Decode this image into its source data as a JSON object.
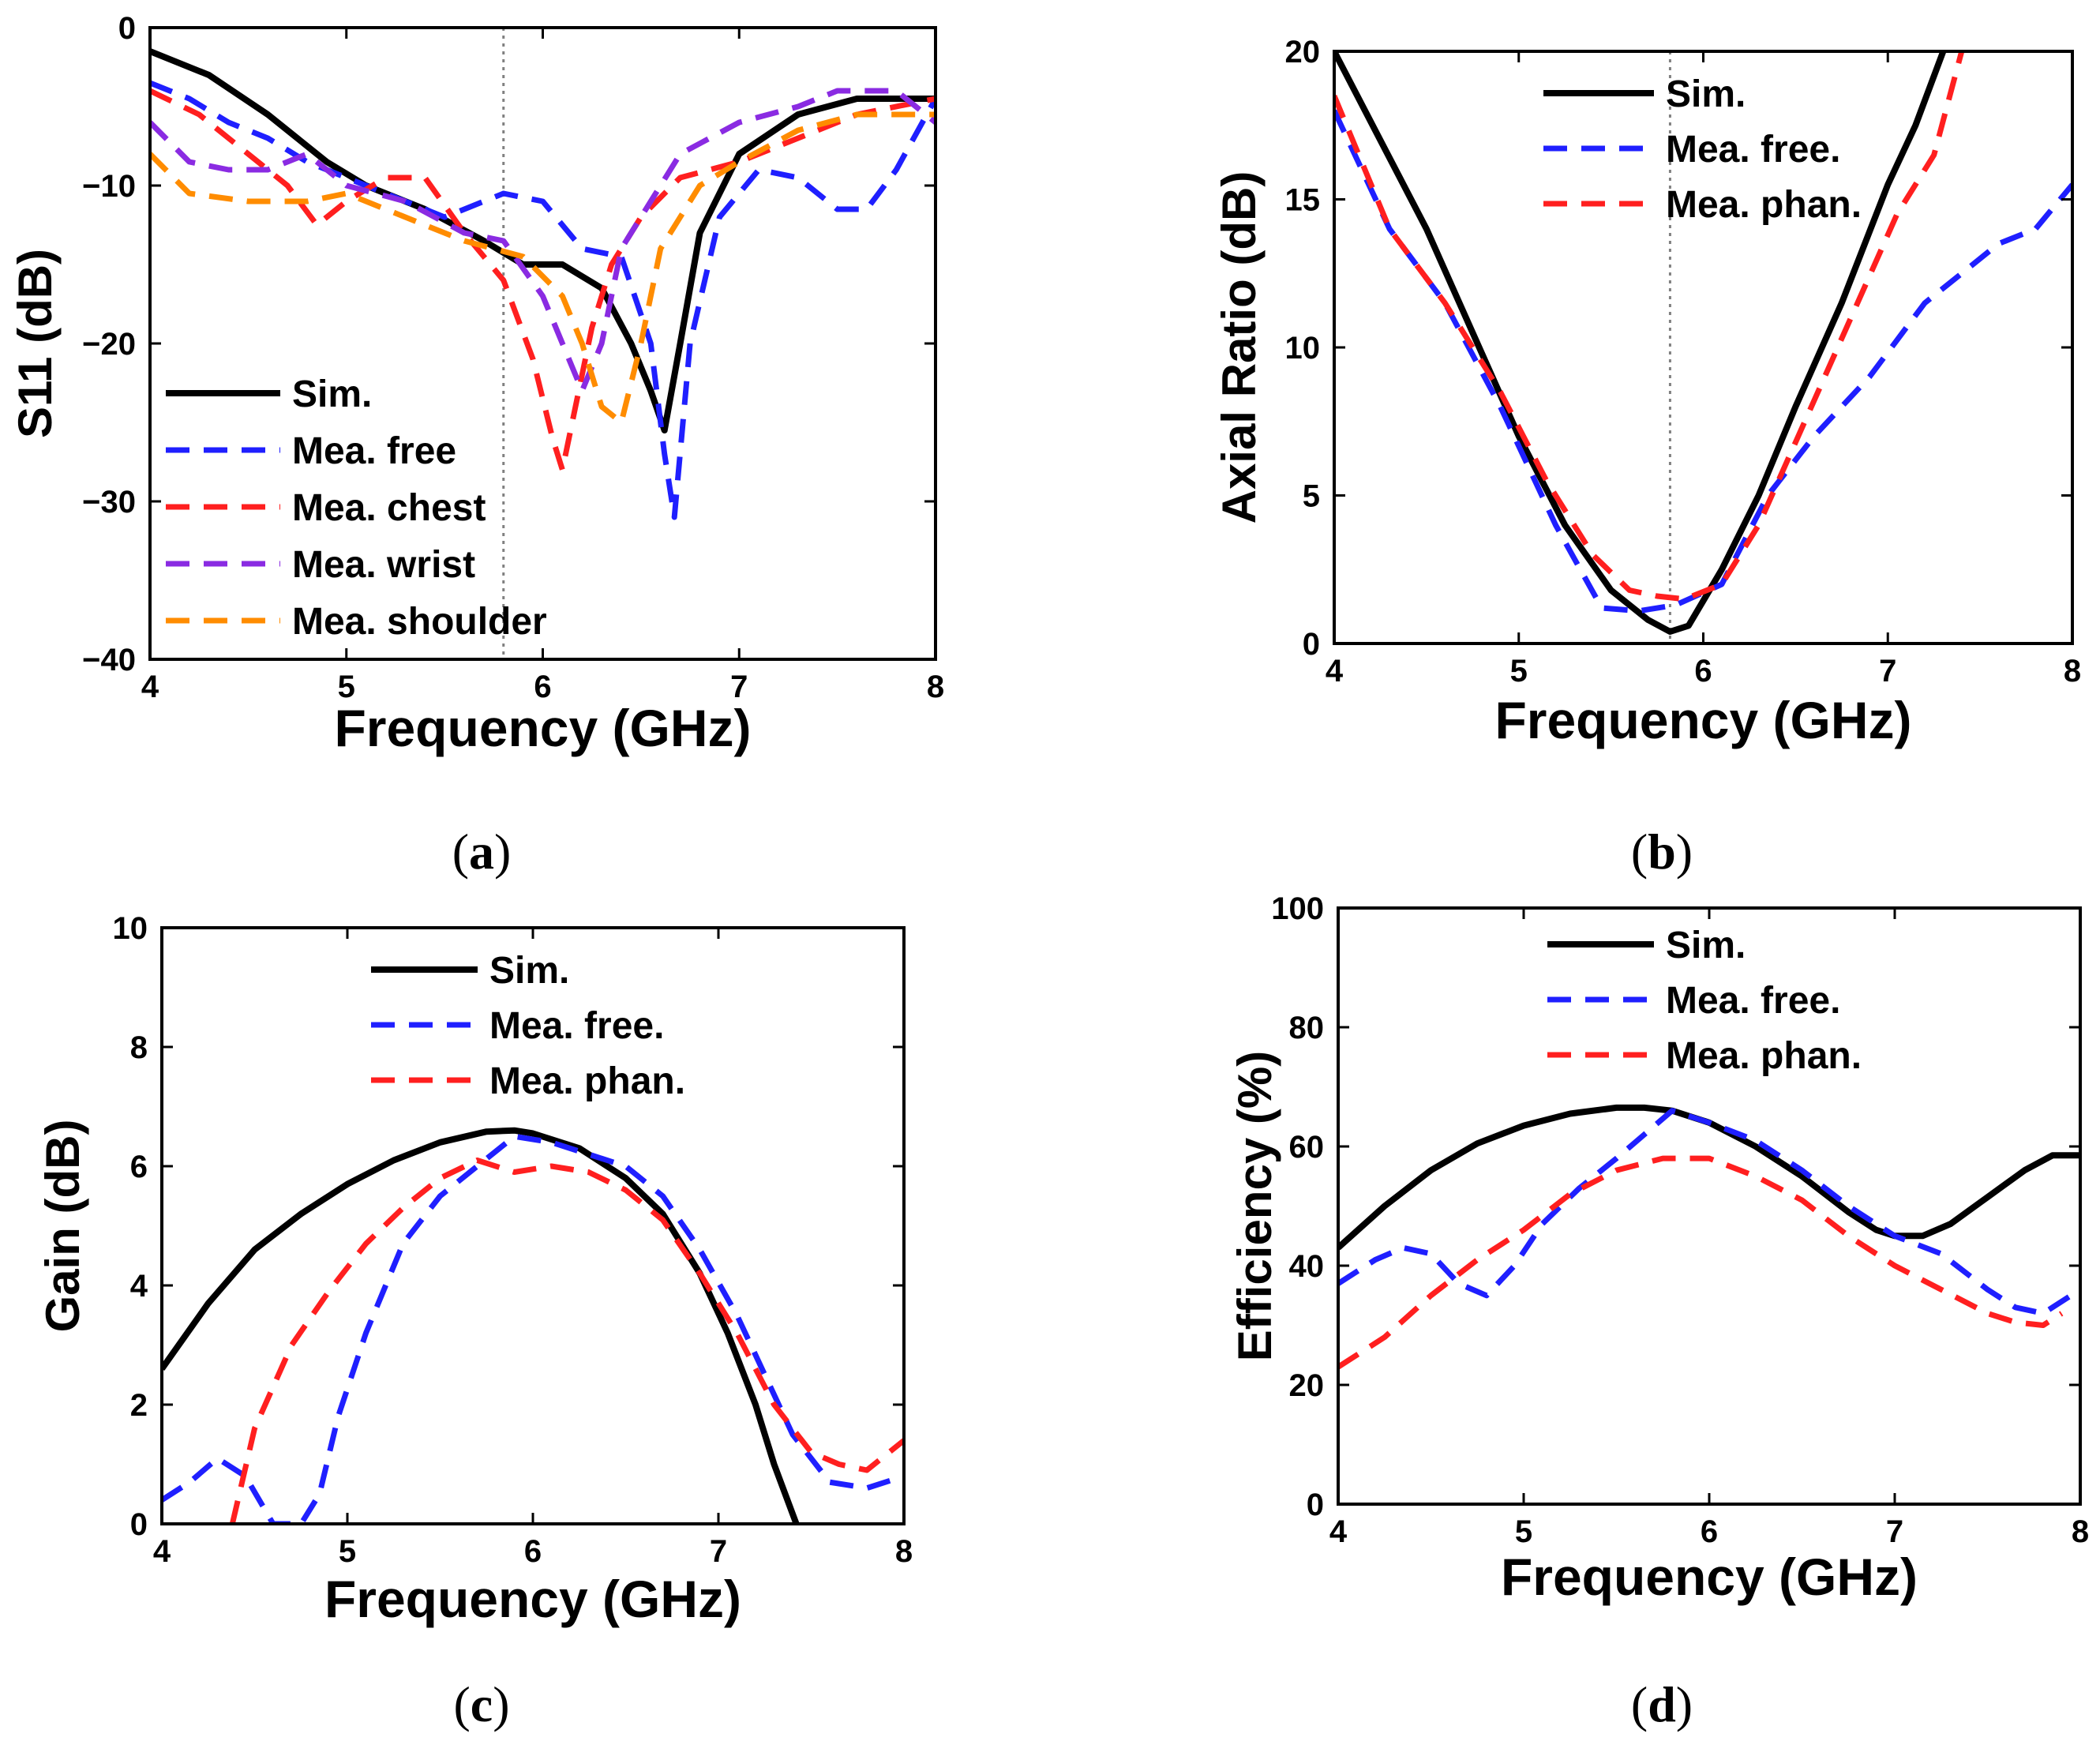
{
  "colors": {
    "sim": "#000000",
    "free": "#1f1fff",
    "chest": "#ff1f1f",
    "wrist": "#8a2be2",
    "shoulder": "#ff8c00",
    "phan": "#ff1f1f",
    "marker": "#808080"
  },
  "chart_data": [
    {
      "id": "a",
      "panel_label": "a",
      "type": "line",
      "xlabel": "Frequency (GHz)",
      "ylabel": "S11 (dB)",
      "xlim": [
        4,
        8
      ],
      "ylim": [
        -40,
        0
      ],
      "xticks": [
        4,
        5,
        6,
        7,
        8
      ],
      "yticks": [
        0,
        -10,
        -20,
        -30,
        -40
      ],
      "ytick_labels": [
        "0",
        "−10",
        "−20",
        "−30",
        "−40"
      ],
      "marker_x": 5.8,
      "legend_position": "bottom-left",
      "series": [
        {
          "name": "Sim.",
          "color_key": "sim",
          "dash": false,
          "x": [
            4,
            4.3,
            4.6,
            4.9,
            5.1,
            5.4,
            5.7,
            5.9,
            6.1,
            6.3,
            6.45,
            6.55,
            6.62,
            6.7,
            6.8,
            7.0,
            7.3,
            7.6,
            8.0
          ],
          "y": [
            -1.5,
            -3,
            -5.5,
            -8.5,
            -10,
            -11.5,
            -13.5,
            -15,
            -15,
            -16.5,
            -20,
            -23,
            -25.5,
            -20,
            -13,
            -8,
            -5.5,
            -4.5,
            -4.5
          ]
        },
        {
          "name": "Mea. free",
          "color_key": "free",
          "dash": true,
          "x": [
            4,
            4.2,
            4.4,
            4.6,
            4.8,
            5.0,
            5.3,
            5.5,
            5.8,
            6.0,
            6.2,
            6.4,
            6.55,
            6.62,
            6.67,
            6.75,
            6.9,
            7.1,
            7.3,
            7.5,
            7.65,
            7.8,
            8.0
          ],
          "y": [
            -3.5,
            -4.5,
            -6,
            -7,
            -8.5,
            -9.5,
            -11,
            -12,
            -10.5,
            -11,
            -14,
            -14.5,
            -20,
            -27,
            -31,
            -20,
            -12,
            -9,
            -9.5,
            -11.5,
            -11.5,
            -9,
            -4.5
          ]
        },
        {
          "name": "Mea. chest",
          "color_key": "chest",
          "dash": true,
          "x": [
            4,
            4.25,
            4.5,
            4.7,
            4.85,
            5.0,
            5.2,
            5.4,
            5.6,
            5.8,
            5.95,
            6.05,
            6.1,
            6.15,
            6.25,
            6.35,
            6.5,
            6.7,
            7.0,
            7.3,
            7.6,
            8.0
          ],
          "y": [
            -4,
            -5.5,
            -8,
            -10,
            -12.5,
            -11,
            -9.5,
            -9.5,
            -13,
            -16,
            -21,
            -26,
            -28,
            -25,
            -19,
            -15,
            -12,
            -9.5,
            -8.5,
            -7,
            -5.5,
            -4.5
          ]
        },
        {
          "name": "Mea. wrist",
          "color_key": "wrist",
          "dash": true,
          "x": [
            4,
            4.2,
            4.4,
            4.6,
            4.8,
            5.0,
            5.3,
            5.6,
            5.8,
            6.0,
            6.1,
            6.2,
            6.3,
            6.4,
            6.55,
            6.7,
            7.0,
            7.3,
            7.5,
            7.8,
            8.0
          ],
          "y": [
            -6,
            -8.5,
            -9,
            -9,
            -8,
            -10,
            -11,
            -13,
            -13.5,
            -17,
            -20,
            -23,
            -20,
            -14,
            -11,
            -8,
            -6,
            -5,
            -4,
            -4,
            -6
          ]
        },
        {
          "name": "Mea. shoulder",
          "color_key": "shoulder",
          "dash": true,
          "x": [
            4,
            4.2,
            4.5,
            4.8,
            5.0,
            5.3,
            5.6,
            5.9,
            6.1,
            6.2,
            6.3,
            6.4,
            6.5,
            6.6,
            6.8,
            7.0,
            7.3,
            7.6,
            8.0
          ],
          "y": [
            -8,
            -10.5,
            -11,
            -11,
            -10.5,
            -12,
            -13.5,
            -14.5,
            -17,
            -20,
            -24,
            -25,
            -20,
            -14,
            -10,
            -8.5,
            -6.5,
            -5.5,
            -5.5
          ]
        }
      ]
    },
    {
      "id": "b",
      "panel_label": "b",
      "type": "line",
      "xlabel": "Frequency (GHz)",
      "ylabel": "Axial Ratio (dB)",
      "xlim": [
        4,
        8
      ],
      "ylim": [
        0,
        20
      ],
      "xticks": [
        4,
        5,
        6,
        7,
        8
      ],
      "yticks": [
        0,
        5,
        10,
        15,
        20
      ],
      "ytick_labels": [
        "0",
        "5",
        "10",
        "15",
        "20"
      ],
      "marker_x": 5.82,
      "legend_position": "top-center",
      "series": [
        {
          "name": "Sim.",
          "color_key": "sim",
          "dash": false,
          "x": [
            4,
            4.25,
            4.5,
            4.75,
            5.0,
            5.25,
            5.5,
            5.7,
            5.82,
            5.92,
            6.1,
            6.3,
            6.5,
            6.75,
            7.0,
            7.15,
            7.3
          ],
          "y": [
            20,
            17,
            14,
            10.5,
            7,
            4,
            1.8,
            0.8,
            0.4,
            0.6,
            2.5,
            5,
            8,
            11.5,
            15.5,
            17.5,
            20
          ]
        },
        {
          "name": "Mea. free.",
          "color_key": "free",
          "dash": true,
          "x": [
            4,
            4.3,
            4.6,
            4.9,
            5.2,
            5.45,
            5.65,
            5.85,
            6.1,
            6.35,
            6.6,
            6.9,
            7.2,
            7.4,
            7.6,
            7.8,
            8.0
          ],
          "y": [
            18,
            14,
            11.5,
            8,
            4,
            1.2,
            1.1,
            1.3,
            2,
            5,
            7,
            9,
            11.5,
            12.5,
            13.5,
            14,
            15.5
          ]
        },
        {
          "name": "Mea. phan.",
          "color_key": "phan",
          "dash": true,
          "x": [
            4,
            4.3,
            4.6,
            4.9,
            5.15,
            5.4,
            5.6,
            5.75,
            5.9,
            6.1,
            6.3,
            6.55,
            6.8,
            7.05,
            7.25,
            7.4
          ],
          "y": [
            18.5,
            14,
            11.5,
            8.5,
            5.5,
            3,
            1.8,
            1.6,
            1.5,
            2,
            4,
            7.5,
            11,
            14.5,
            16.5,
            20
          ]
        }
      ]
    },
    {
      "id": "c",
      "panel_label": "c",
      "type": "line",
      "xlabel": "Frequency (GHz)",
      "ylabel": "Gain (dB)",
      "xlim": [
        4,
        8
      ],
      "ylim": [
        0,
        10
      ],
      "xticks": [
        4,
        5,
        6,
        7,
        8
      ],
      "yticks": [
        0,
        2,
        4,
        6,
        8,
        10
      ],
      "ytick_labels": [
        "0",
        "2",
        "4",
        "6",
        "8",
        "10"
      ],
      "legend_position": "top-center",
      "series": [
        {
          "name": "Sim.",
          "color_key": "sim",
          "dash": false,
          "x": [
            4,
            4.25,
            4.5,
            4.75,
            5.0,
            5.25,
            5.5,
            5.75,
            5.9,
            6.0,
            6.25,
            6.5,
            6.7,
            6.9,
            7.05,
            7.2,
            7.3,
            7.42
          ],
          "y": [
            2.6,
            3.7,
            4.6,
            5.2,
            5.7,
            6.1,
            6.4,
            6.58,
            6.6,
            6.55,
            6.3,
            5.8,
            5.2,
            4.2,
            3.2,
            2.0,
            1.0,
            0
          ]
        },
        {
          "name": "Mea. free.",
          "color_key": "free",
          "dash": true,
          "x": [
            4,
            4.15,
            4.3,
            4.45,
            4.6,
            4.75,
            4.85,
            4.95,
            5.1,
            5.3,
            5.5,
            5.7,
            5.9,
            6.1,
            6.3,
            6.5,
            6.7,
            6.9,
            7.1,
            7.25,
            7.4,
            7.6,
            7.8,
            8.0
          ],
          "y": [
            0.4,
            0.7,
            1.1,
            0.8,
            0,
            0,
            0.5,
            1.8,
            3.2,
            4.7,
            5.5,
            6.0,
            6.5,
            6.4,
            6.2,
            6.0,
            5.5,
            4.6,
            3.5,
            2.5,
            1.5,
            0.7,
            0.6,
            0.8
          ]
        },
        {
          "name": "Mea. phan.",
          "color_key": "phan",
          "dash": true,
          "x": [
            4.38,
            4.5,
            4.7,
            4.9,
            5.1,
            5.3,
            5.5,
            5.7,
            5.9,
            6.1,
            6.3,
            6.5,
            6.7,
            6.9,
            7.1,
            7.3,
            7.5,
            7.65,
            7.8,
            8.0
          ],
          "y": [
            0,
            1.6,
            3.0,
            3.9,
            4.7,
            5.3,
            5.8,
            6.1,
            5.9,
            6.0,
            5.9,
            5.6,
            5.1,
            4.2,
            3.2,
            2.0,
            1.2,
            1.0,
            0.9,
            1.4
          ]
        }
      ]
    },
    {
      "id": "d",
      "panel_label": "d",
      "type": "line",
      "xlabel": "Frequency (GHz)",
      "ylabel": "Efficiency (%)",
      "xlim": [
        4,
        8
      ],
      "ylim": [
        0,
        100
      ],
      "xticks": [
        4,
        5,
        6,
        7,
        8
      ],
      "yticks": [
        0,
        20,
        40,
        60,
        80,
        100
      ],
      "ytick_labels": [
        "0",
        "20",
        "40",
        "60",
        "80",
        "100"
      ],
      "legend_position": "top-center",
      "series": [
        {
          "name": "Sim.",
          "color_key": "sim",
          "dash": false,
          "x": [
            4,
            4.25,
            4.5,
            4.75,
            5.0,
            5.25,
            5.5,
            5.65,
            5.8,
            6.0,
            6.25,
            6.5,
            6.75,
            6.9,
            7.0,
            7.15,
            7.3,
            7.5,
            7.7,
            7.85,
            8.0
          ],
          "y": [
            43,
            50,
            56,
            60.5,
            63.5,
            65.5,
            66.5,
            66.5,
            66,
            64,
            60,
            55,
            49,
            46,
            45,
            45,
            47,
            51.5,
            56,
            58.5,
            58.5
          ]
        },
        {
          "name": "Mea. free.",
          "color_key": "free",
          "dash": true,
          "x": [
            4,
            4.2,
            4.35,
            4.5,
            4.65,
            4.8,
            4.95,
            5.1,
            5.3,
            5.5,
            5.65,
            5.8,
            6.0,
            6.25,
            6.5,
            6.75,
            7.0,
            7.25,
            7.5,
            7.65,
            7.8,
            8.0
          ],
          "y": [
            37,
            41,
            43,
            42,
            37,
            35,
            40,
            47,
            53,
            58,
            62,
            66,
            64,
            61,
            56,
            50,
            45,
            42,
            36,
            33,
            32,
            36
          ]
        },
        {
          "name": "Mea. phan.",
          "color_key": "phan",
          "dash": true,
          "x": [
            4,
            4.25,
            4.5,
            4.75,
            5.0,
            5.25,
            5.5,
            5.75,
            6.0,
            6.25,
            6.5,
            6.75,
            7.0,
            7.25,
            7.5,
            7.65,
            7.8,
            7.9
          ],
          "y": [
            23,
            28,
            35,
            41,
            46,
            52,
            56,
            58,
            58,
            55,
            51,
            45,
            40,
            36,
            32,
            30.5,
            30,
            32
          ]
        }
      ]
    }
  ]
}
